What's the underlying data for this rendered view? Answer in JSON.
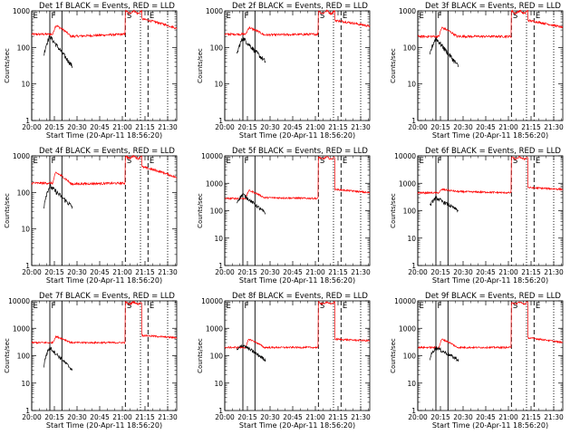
{
  "chart_data": {
    "type": "line",
    "layout": "3x3 grid of time-series panels",
    "y_scale": "log",
    "ylabel": "Counts/sec",
    "xlabel": "Start Time (20-Apr-11 18:56:20)",
    "x_tick_labels": [
      "20:00",
      "20:15",
      "20:30",
      "20:45",
      "21:00",
      "21:15",
      "21:30"
    ],
    "xlim": [
      "20:00",
      "21:36"
    ],
    "series_colors": {
      "events": "#000000",
      "lld": "#ff0000"
    },
    "marker_letters": [
      "E",
      "F",
      "S",
      "E"
    ],
    "markers": [
      {
        "label": "E",
        "time": "20:00",
        "style": "solid"
      },
      {
        "label": "F",
        "time": "20:12",
        "style": "solid"
      },
      {
        "label": "",
        "time": "20:20",
        "style": "solid"
      },
      {
        "label": "S",
        "time": "21:02",
        "style": "dashed"
      },
      {
        "label": "",
        "time": "21:12",
        "style": "dotted"
      },
      {
        "label": "E",
        "time": "21:17",
        "style": "dashed"
      },
      {
        "label": "",
        "time": "21:30",
        "style": "dotted"
      }
    ],
    "panels": [
      {
        "title": "Det 1f BLACK = Events, RED = LLD",
        "ylim": [
          1,
          1000
        ],
        "y_tick_labels": [
          "1",
          "10",
          "100",
          "1000"
        ],
        "lld": {
          "base": 230,
          "pre": 200,
          "flare": 400,
          "bump": 1000,
          "post": 600,
          "end": 330
        },
        "events": {
          "start": 60,
          "peak": 200,
          "end": 30
        }
      },
      {
        "title": "Det 2f BLACK = Events, RED = LLD",
        "ylim": [
          1,
          1000
        ],
        "y_tick_labels": [
          "1",
          "10",
          "100",
          "1000"
        ],
        "lld": {
          "base": 230,
          "pre": 220,
          "flare": 350,
          "bump": 1000,
          "post": 550,
          "end": 380
        },
        "events": {
          "start": 60,
          "peak": 180,
          "end": 40
        }
      },
      {
        "title": "Det 3f BLACK = Events, RED = LLD",
        "ylim": [
          1,
          1000
        ],
        "y_tick_labels": [
          "1",
          "10",
          "100",
          "1000"
        ],
        "lld": {
          "base": 200,
          "pre": 200,
          "flare": 350,
          "bump": 1000,
          "post": 550,
          "end": 350
        },
        "events": {
          "start": 60,
          "peak": 180,
          "end": 30
        }
      },
      {
        "title": "Det 4f BLACK = Events, RED = LLD",
        "ylim": [
          1,
          1000
        ],
        "y_tick_labels": [
          "1",
          "10",
          "100",
          "1000"
        ],
        "lld": {
          "base": 180,
          "pre": 170,
          "flare": 350,
          "bump": 1000,
          "post": 500,
          "end": 250
        },
        "events": {
          "start": 40,
          "peak": 150,
          "end": 40
        }
      },
      {
        "title": "Det 5f BLACK = Events, RED = LLD",
        "ylim": [
          1,
          10000
        ],
        "y_tick_labels": [
          "1",
          "10",
          "100",
          "1000",
          "10000"
        ],
        "lld": {
          "base": 280,
          "pre": 300,
          "flare": 550,
          "bump": 9000,
          "post": 600,
          "end": 450
        },
        "events": {
          "start": 200,
          "peak": 400,
          "end": 80
        }
      },
      {
        "title": "Det 6f BLACK = Events, RED = LLD",
        "ylim": [
          1,
          10000
        ],
        "y_tick_labels": [
          "1",
          "10",
          "100",
          "1000",
          "10000"
        ],
        "lld": {
          "base": 450,
          "pre": 500,
          "flare": 600,
          "bump": 9000,
          "post": 700,
          "end": 600
        },
        "events": {
          "start": 150,
          "peak": 300,
          "end": 100
        }
      },
      {
        "title": "Det 7f BLACK = Events, RED = LLD",
        "ylim": [
          1,
          10000
        ],
        "y_tick_labels": [
          "1",
          "10",
          "100",
          "1000",
          "10000"
        ],
        "lld": {
          "base": 300,
          "pre": 300,
          "flare": 500,
          "bump": 9000,
          "post": 550,
          "end": 450
        },
        "events": {
          "start": 40,
          "peak": 200,
          "end": 30
        }
      },
      {
        "title": "Det 8f BLACK = Events, RED = LLD",
        "ylim": [
          1,
          10000
        ],
        "y_tick_labels": [
          "1",
          "10",
          "100",
          "1000",
          "10000"
        ],
        "lld": {
          "base": 200,
          "pre": 200,
          "flare": 400,
          "bump": 9000,
          "post": 400,
          "end": 350
        },
        "events": {
          "start": 150,
          "peak": 250,
          "end": 70
        }
      },
      {
        "title": "Det 9f BLACK = Events, RED = LLD",
        "ylim": [
          1,
          10000
        ],
        "y_tick_labels": [
          "1",
          "10",
          "100",
          "1000",
          "10000"
        ],
        "lld": {
          "base": 200,
          "pre": 200,
          "flare": 400,
          "bump": 9000,
          "post": 450,
          "end": 300
        },
        "events": {
          "start": 80,
          "peak": 200,
          "end": 70
        }
      }
    ]
  }
}
